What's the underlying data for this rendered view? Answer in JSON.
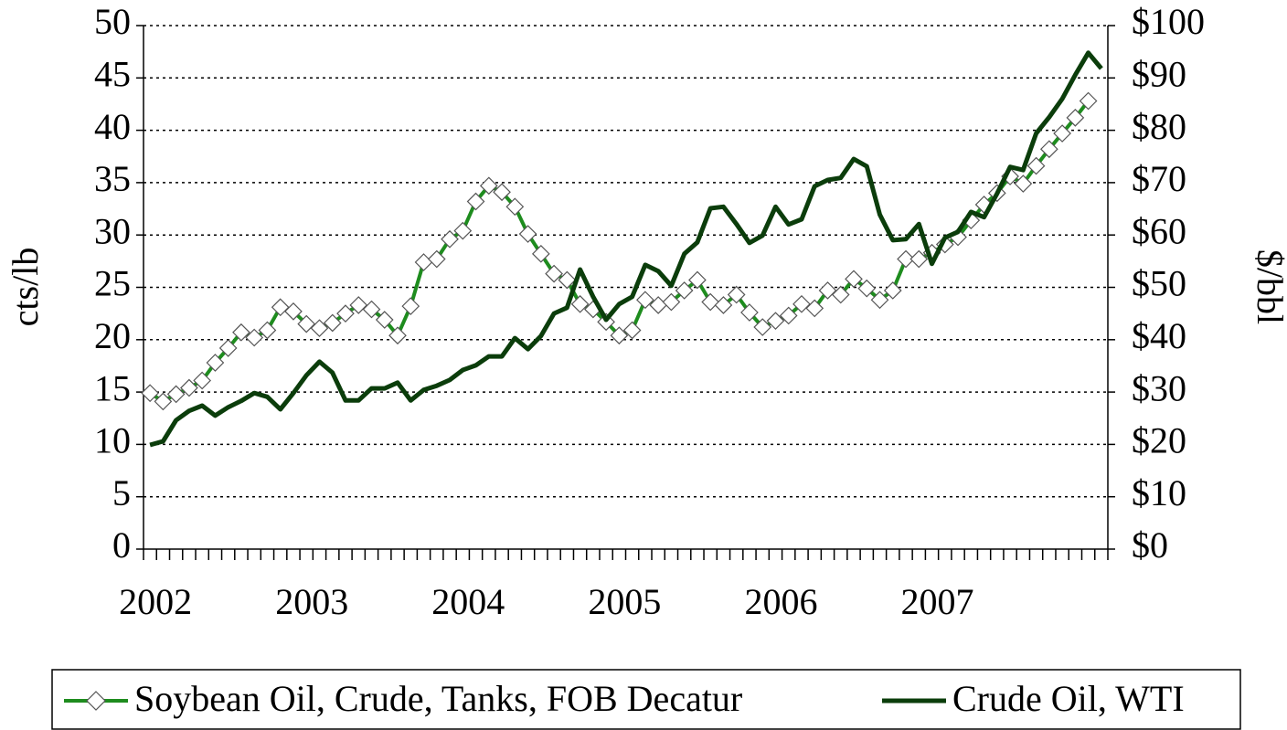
{
  "chart_data": {
    "type": "line",
    "y_label": "cts/lb",
    "y2_label": "$/bbl",
    "categories": [
      "2002",
      null,
      null,
      null,
      null,
      null,
      null,
      null,
      null,
      null,
      null,
      null,
      "2003",
      null,
      null,
      null,
      null,
      null,
      null,
      null,
      null,
      null,
      null,
      null,
      "2004",
      null,
      null,
      null,
      null,
      null,
      null,
      null,
      null,
      null,
      null,
      null,
      "2005",
      null,
      null,
      null,
      null,
      null,
      null,
      null,
      null,
      null,
      null,
      null,
      "2006",
      null,
      null,
      null,
      null,
      null,
      null,
      null,
      null,
      null,
      null,
      null,
      "2007",
      null,
      null,
      null,
      null,
      null,
      null,
      null,
      null,
      null,
      null,
      null,
      null,
      null
    ],
    "ylim": [
      0,
      50
    ],
    "yticks": [
      0,
      5,
      10,
      15,
      20,
      25,
      30,
      35,
      40,
      45,
      50
    ],
    "y2lim": [
      0,
      100
    ],
    "y2ticks": [
      {
        "value": 0,
        "label": "$0"
      },
      {
        "value": 10,
        "label": "$10"
      },
      {
        "value": 20,
        "label": "$20"
      },
      {
        "value": 30,
        "label": "$30"
      },
      {
        "value": 40,
        "label": "$40"
      },
      {
        "value": 50,
        "label": "$50"
      },
      {
        "value": 60,
        "label": "$60"
      },
      {
        "value": 70,
        "label": "$70"
      },
      {
        "value": 80,
        "label": "$80"
      },
      {
        "value": 90,
        "label": "$90"
      },
      {
        "value": 100,
        "label": "$100"
      }
    ],
    "grid": true,
    "legend": "bottom",
    "series": [
      {
        "name": "Soybean Oil, Crude, Tanks, FOB Decatur",
        "color": "#1e8c1e",
        "marker": "diamond",
        "values": [
          14.9,
          14.1,
          14.8,
          15.4,
          16.1,
          17.8,
          19.2,
          20.7,
          20.2,
          20.9,
          23.1,
          22.7,
          21.5,
          21.1,
          21.6,
          22.5,
          23.3,
          22.9,
          21.9,
          20.4,
          23.2,
          27.4,
          27.7,
          29.6,
          30.4,
          33.2,
          34.7,
          34.1,
          32.7,
          30.1,
          28.2,
          26.3,
          25.7,
          23.4,
          22.9,
          21.7,
          20.4,
          20.9,
          23.8,
          23.3,
          23.6,
          24.7,
          25.7,
          23.6,
          23.3,
          24.3,
          22.6,
          21.2,
          21.8,
          22.3,
          23.4,
          23.0,
          24.7,
          24.3,
          25.8,
          24.9,
          23.8,
          24.7,
          27.7,
          27.7,
          28.3,
          29.1,
          29.8,
          31.4,
          32.9,
          34.0,
          35.6,
          34.9,
          36.6,
          38.2,
          39.7,
          41.2,
          42.8,
          null
        ]
      },
      {
        "name": "Crude Oil, WTI",
        "color": "#0b3d0b",
        "axis": "y2",
        "values": [
          19.9,
          20.6,
          24.6,
          26.4,
          27.4,
          25.5,
          27.1,
          28.3,
          29.8,
          29.1,
          26.7,
          29.8,
          33.2,
          35.8,
          33.7,
          28.4,
          28.4,
          30.7,
          30.7,
          31.8,
          28.4,
          30.4,
          31.2,
          32.3,
          34.2,
          35.1,
          36.8,
          36.8,
          40.3,
          38.2,
          40.7,
          45.0,
          46.1,
          53.4,
          48.2,
          43.8,
          46.8,
          48.2,
          54.3,
          53.1,
          50.3,
          56.4,
          58.6,
          65.1,
          65.4,
          62.1,
          58.5,
          59.9,
          65.4,
          62.0,
          63.0,
          69.3,
          70.5,
          70.9,
          74.5,
          73.1,
          63.9,
          59.0,
          59.2,
          62.1,
          54.5,
          59.5,
          60.6,
          64.4,
          63.4,
          67.9,
          73.0,
          72.4,
          79.4,
          82.5,
          86.0,
          90.6,
          94.8,
          91.8
        ]
      }
    ]
  }
}
